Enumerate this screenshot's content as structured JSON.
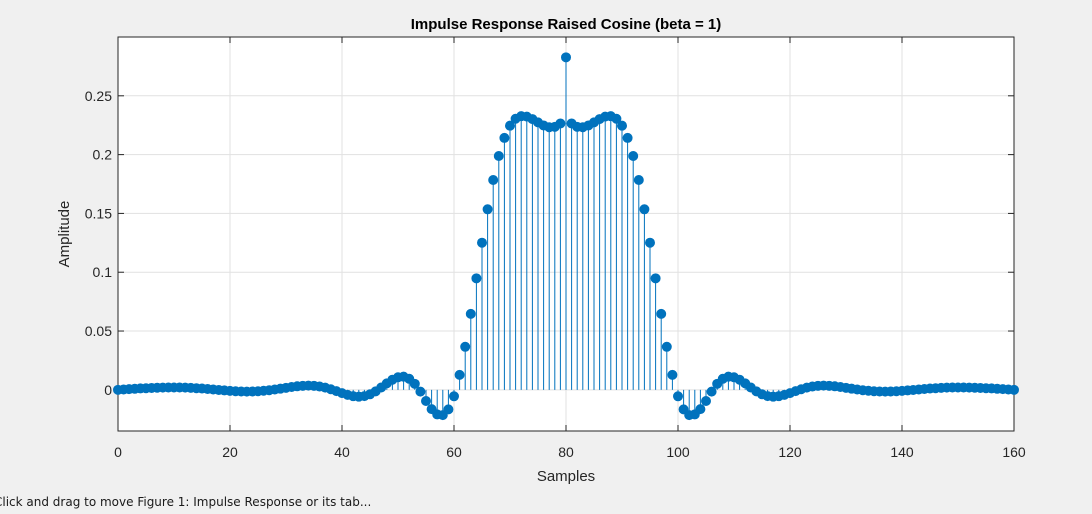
{
  "window": {
    "status_text": "Click and drag to move Figure 1: Impulse Response or its tab..."
  },
  "colors": {
    "series": "#0072bd",
    "grid": "#e1e1e1",
    "axes": "#262626",
    "background": "#ffffff"
  },
  "chart_data": {
    "type": "stem",
    "title": "Impulse Response Raised Cosine (beta = 1)",
    "xlabel": "Samples",
    "ylabel": "Amplitude",
    "xlim": [
      0,
      160
    ],
    "ylim": [
      -0.035,
      0.3
    ],
    "xticks": [
      0,
      20,
      40,
      60,
      80,
      100,
      120,
      140,
      160
    ],
    "xtick_labels": [
      "0",
      "20",
      "40",
      "60",
      "80",
      "100",
      "120",
      "140",
      "160"
    ],
    "yticks": [
      0,
      0.05,
      0.1,
      0.15,
      0.2,
      0.25
    ],
    "ytick_labels": [
      "0",
      "0.05",
      "0.1",
      "0.15",
      "0.2",
      "0.25"
    ],
    "grid": true,
    "legend": "none",
    "series": [
      {
        "x": [
          0,
          1,
          2,
          3,
          4,
          5,
          6,
          7,
          8,
          9,
          10,
          11,
          12,
          13,
          14,
          15,
          16,
          17,
          18,
          19,
          20,
          21,
          22,
          23,
          24,
          25,
          26,
          27,
          28,
          29,
          30,
          31,
          32,
          33,
          34,
          35,
          36,
          37,
          38,
          39,
          40,
          41,
          42,
          43,
          44,
          45,
          46,
          47,
          48,
          49,
          50,
          51,
          52,
          53,
          54,
          55,
          56,
          57,
          58,
          59,
          60,
          61,
          62,
          63,
          64,
          65,
          66,
          67,
          68,
          69,
          70,
          71,
          72,
          73,
          74,
          75,
          76,
          77,
          78,
          79,
          80,
          81,
          82,
          83,
          84,
          85,
          86,
          87,
          88,
          89,
          90,
          91,
          92,
          93,
          94,
          95,
          96,
          97,
          98,
          99,
          100,
          101,
          102,
          103,
          104,
          105,
          106,
          107,
          108,
          109,
          110,
          111,
          112,
          113,
          114,
          115,
          116,
          117,
          118,
          119,
          120,
          121,
          122,
          123,
          124,
          125,
          126,
          127,
          128,
          129,
          130,
          131,
          132,
          133,
          134,
          135,
          136,
          137,
          138,
          139,
          140,
          141,
          142,
          143,
          144,
          145,
          146,
          147,
          148,
          149,
          150,
          151,
          152,
          153,
          154,
          155,
          156,
          157,
          158,
          159,
          160
        ],
        "y": [
          0,
          0.0003,
          0.0006,
          0.0009,
          0.0012,
          0.0014,
          0.0016,
          0.0018,
          0.0019,
          0.002,
          0.002,
          0.002,
          0.0019,
          0.0017,
          0.0014,
          0.0011,
          0.0007,
          0.0003,
          -0.0001,
          -0.0005,
          -0.0009,
          -0.0012,
          -0.0014,
          -0.0015,
          -0.0014,
          -0.0012,
          -0.0008,
          -0.0003,
          0.0003,
          0.001,
          0.0017,
          0.0024,
          0.003,
          0.0034,
          0.0036,
          0.0034,
          0.0028,
          0.0019,
          0.0005,
          -0.0011,
          -0.0028,
          -0.0043,
          -0.0054,
          -0.0058,
          -0.0053,
          -0.0038,
          -0.0013,
          0.002,
          0.0055,
          0.0086,
          0.0107,
          0.0112,
          0.0094,
          0.0051,
          -0.0015,
          -0.0095,
          -0.0164,
          -0.0209,
          -0.0215,
          -0.0166,
          -0.0055,
          0.0127,
          0.0366,
          0.0646,
          0.0948,
          0.1251,
          0.1535,
          0.1784,
          0.1988,
          0.2142,
          0.2246,
          0.2305,
          0.2327,
          0.2323,
          0.2302,
          0.2274,
          0.2248,
          0.2233,
          0.2236,
          0.2265,
          0.2827,
          0.2265,
          0.2236,
          0.2233,
          0.2248,
          0.2274,
          0.2302,
          0.2323,
          0.2327,
          0.2305,
          0.2246,
          0.2142,
          0.1988,
          0.1784,
          0.1535,
          0.1251,
          0.0948,
          0.0646,
          0.0366,
          0.0127,
          -0.0055,
          -0.0166,
          -0.0215,
          -0.0209,
          -0.0164,
          -0.0095,
          -0.0015,
          0.0051,
          0.0094,
          0.0112,
          0.0107,
          0.0086,
          0.0055,
          0.002,
          -0.0013,
          -0.0038,
          -0.0053,
          -0.0058,
          -0.0054,
          -0.0043,
          -0.0028,
          -0.0011,
          0.0005,
          0.0019,
          0.0028,
          0.0034,
          0.0036,
          0.0034,
          0.003,
          0.0024,
          0.0017,
          0.001,
          0.0003,
          -0.0003,
          -0.0008,
          -0.0012,
          -0.0014,
          -0.0015,
          -0.0014,
          -0.0012,
          -0.0009,
          -0.0005,
          -0.0001,
          0.0003,
          0.0007,
          0.0011,
          0.0014,
          0.0017,
          0.0019,
          0.002,
          0.002,
          0.002,
          0.0019,
          0.0018,
          0.0016,
          0.0014,
          0.0012,
          0.0009,
          0.0006,
          0.0003,
          0
        ]
      }
    ]
  }
}
